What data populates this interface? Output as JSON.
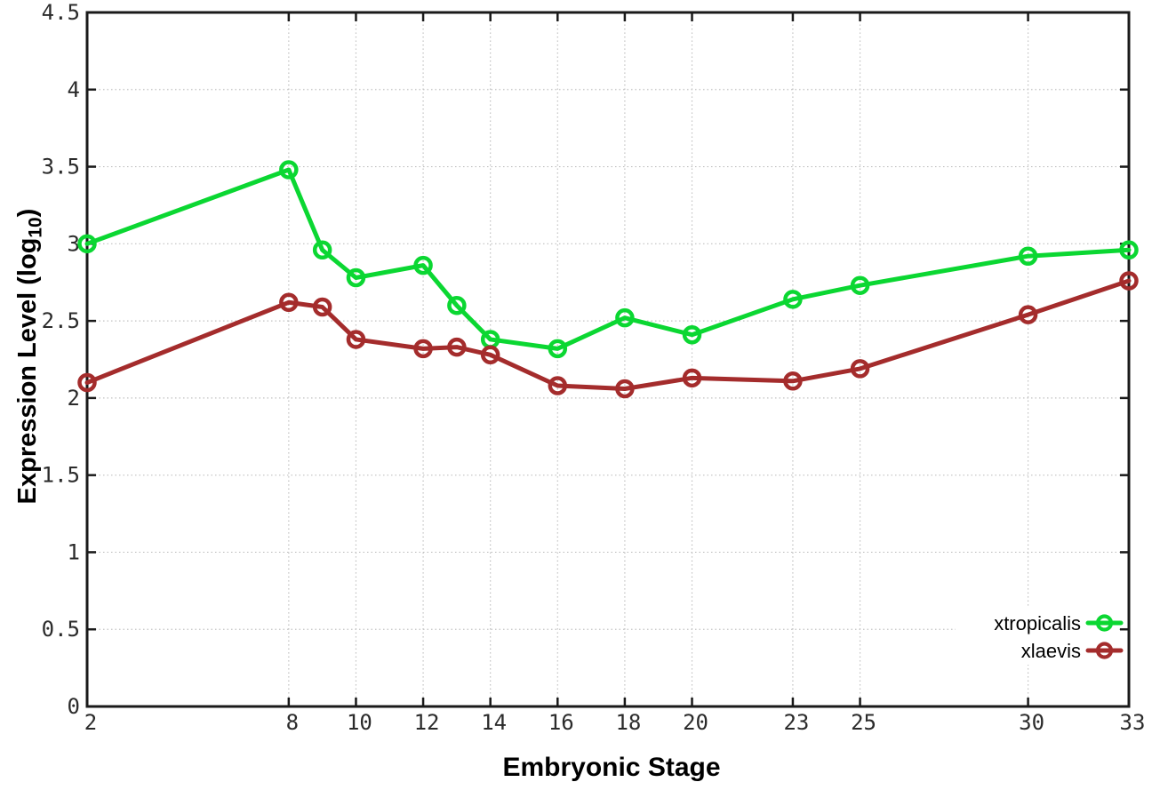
{
  "figure": {
    "background": "#ffffff",
    "border_color": "#1a1a1a",
    "grid_color": "#c0c0c0",
    "tick_label_color": "#2b2b2b"
  },
  "chart_data": {
    "type": "line",
    "title": "",
    "xlabel": "Embryonic Stage",
    "ylabel": "Expression Level (log10)",
    "ylabel_parts": {
      "prefix": "Expression Level (log",
      "subscript": "10",
      "suffix": ")"
    },
    "x": [
      2,
      8,
      9,
      10,
      12,
      13,
      14,
      16,
      18,
      20,
      23,
      25,
      30,
      33
    ],
    "series": [
      {
        "name": "xtropicalis",
        "color": "#0bd732",
        "marker": "open-circle",
        "values": [
          3.0,
          3.48,
          2.96,
          2.78,
          2.86,
          2.6,
          2.38,
          2.32,
          2.52,
          2.41,
          2.64,
          2.73,
          2.92,
          2.96
        ]
      },
      {
        "name": "xlaevis",
        "color": "#a42c2c",
        "marker": "open-circle",
        "values": [
          2.1,
          2.62,
          2.59,
          2.38,
          2.32,
          2.33,
          2.28,
          2.08,
          2.06,
          2.13,
          2.11,
          2.19,
          2.54,
          2.76
        ]
      }
    ],
    "x_ticks": [
      "2",
      "8",
      "10",
      "12",
      "14",
      "16",
      "18",
      "20",
      "23",
      "25",
      "30",
      "33"
    ],
    "y_ticks": [
      "0",
      "0.5",
      "1",
      "1.5",
      "2",
      "2.5",
      "3",
      "3.5",
      "4",
      "4.5"
    ],
    "xlim": [
      2,
      33
    ],
    "ylim": [
      0,
      4.5
    ],
    "grid": "dotted",
    "legend_position": "bottom-right"
  }
}
